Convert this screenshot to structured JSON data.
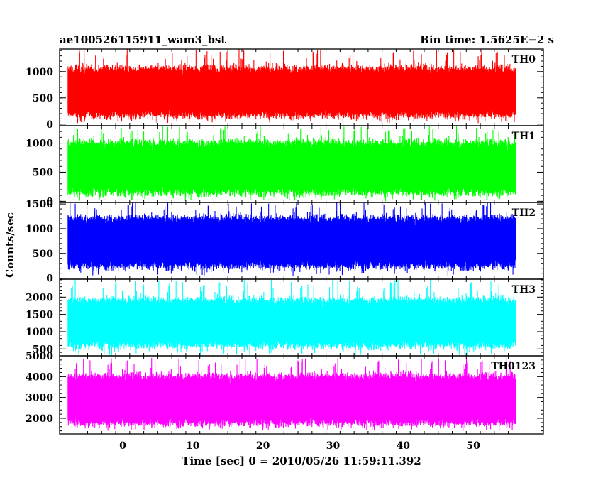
{
  "header": {
    "left": "ae100526115911_wam3_bst",
    "right": "Bin time: 1.5625E−2 s"
  },
  "chart_data": {
    "type": "line",
    "title": "ae100526115911_wam3_bst",
    "subtitle": "Bin time: 1.5625E−2 s",
    "xlabel": "Time [sec] 0 = 2010/05/26 11:59:11.392",
    "ylabel": "Counts/sec",
    "xlim": [
      -9,
      60
    ],
    "data_x_range": [
      -7.8,
      56
    ],
    "x_ticks": [
      "0",
      "10",
      "20",
      "30",
      "40",
      "50"
    ],
    "x_tick_values": [
      0,
      10,
      20,
      30,
      40,
      50
    ],
    "grid": false,
    "legend": "none",
    "panels": [
      {
        "name": "TH0",
        "color": "#ff0000",
        "ylim": [
          -30,
          1430
        ],
        "y_ticks": [
          "0",
          "500",
          "1000"
        ],
        "y_tick_values": [
          0,
          500,
          1000
        ],
        "typical_low": 180,
        "typical_high": 1050,
        "min": 20,
        "max": 1430
      },
      {
        "name": "TH1",
        "color": "#00ff00",
        "ylim": [
          -20,
          1300
        ],
        "y_ticks": [
          "0",
          "500",
          "1000"
        ],
        "y_tick_values": [
          0,
          500,
          1000
        ],
        "typical_low": 160,
        "typical_high": 1000,
        "min": 0,
        "max": 1300
      },
      {
        "name": "TH2",
        "color": "#0000ff",
        "ylim": [
          -20,
          1530
        ],
        "y_ticks": [
          "0",
          "500",
          "1000",
          "1500"
        ],
        "y_tick_values": [
          0,
          500,
          1000,
          1500
        ],
        "typical_low": 260,
        "typical_high": 1200,
        "min": 50,
        "max": 1530
      },
      {
        "name": "TH3",
        "color": "#00ffff",
        "ylim": [
          300,
          2520
        ],
        "y_ticks": [
          "500",
          "1000",
          "1500",
          "2000"
        ],
        "y_tick_values": [
          500,
          1000,
          1500,
          2000
        ],
        "typical_low": 620,
        "typical_high": 1900,
        "min": 300,
        "max": 2520
      },
      {
        "name": "TH0123",
        "color": "#ff00ff",
        "ylim": [
          1250,
          5000
        ],
        "y_ticks": [
          "2000",
          "3000",
          "4000",
          "5000"
        ],
        "y_tick_values": [
          2000,
          3000,
          4000,
          5000
        ],
        "typical_low": 1800,
        "typical_high": 4000,
        "min": 1400,
        "max": 4900
      }
    ]
  }
}
